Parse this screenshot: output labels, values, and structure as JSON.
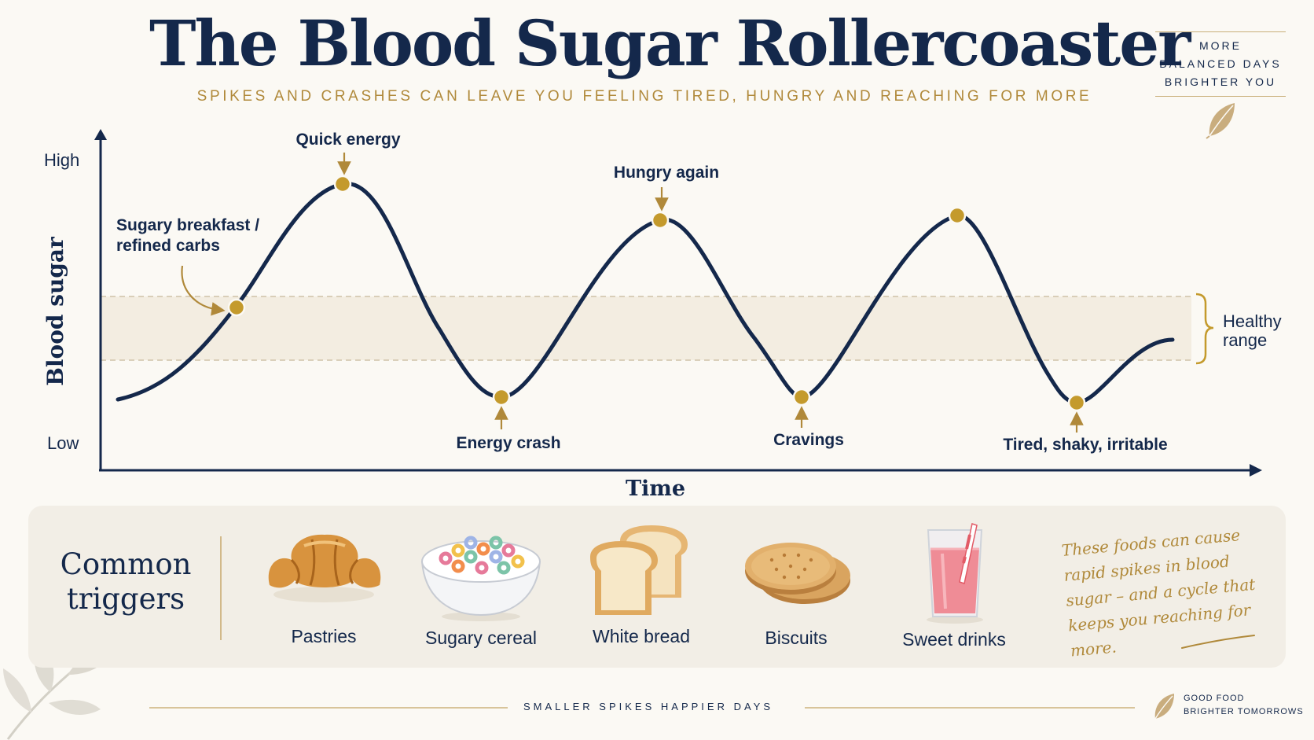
{
  "header": {
    "title": "The Blood Sugar Rollercoaster",
    "subtitle": "SPIKES AND CRASHES CAN LEAVE YOU FEELING TIRED, HUNGRY AND REACHING FOR MORE"
  },
  "badge": {
    "lines": [
      "MORE",
      "BALANCED DAYS",
      "BRIGHTER YOU"
    ],
    "icon": "leaf-icon"
  },
  "diagram": {
    "y_axis_label": "Blood sugar",
    "y_high": "High",
    "y_low": "Low",
    "x_axis_label": "Time",
    "healthy_range_label": [
      "Healthy",
      "range"
    ],
    "annotations": [
      {
        "id": "sugary-breakfast",
        "lines": [
          "Sugary breakfast /",
          "refined carbs"
        ]
      },
      {
        "id": "quick-energy",
        "lines": [
          "Quick energy"
        ]
      },
      {
        "id": "energy-crash",
        "lines": [
          "Energy crash"
        ]
      },
      {
        "id": "hungry-again",
        "lines": [
          "Hungry again"
        ]
      },
      {
        "id": "cravings",
        "lines": [
          "Cravings"
        ]
      },
      {
        "id": "tired-shaky",
        "lines": [
          "Tired, shaky, irritable"
        ]
      }
    ],
    "colors": {
      "curve": "#14284b",
      "marker": "#c49a2c",
      "band": "#f3ede1",
      "accent": "#b0893a"
    }
  },
  "triggers": {
    "heading": [
      "Common",
      "triggers"
    ],
    "items": [
      {
        "label": "Pastries",
        "icon": "croissant-icon"
      },
      {
        "label": "Sugary cereal",
        "icon": "cereal-bowl-icon"
      },
      {
        "label": "White bread",
        "icon": "bread-icon"
      },
      {
        "label": "Biscuits",
        "icon": "biscuits-icon"
      },
      {
        "label": "Sweet drinks",
        "icon": "drink-glass-icon"
      }
    ],
    "note": "These foods can cause rapid spikes in blood sugar – and a cycle that keeps you reaching for more."
  },
  "footer": {
    "tagline": "SMALLER SPIKES  HAPPIER DAYS",
    "brand": [
      "GOOD FOOD",
      "BRIGHTER TOMORROWS"
    ]
  }
}
